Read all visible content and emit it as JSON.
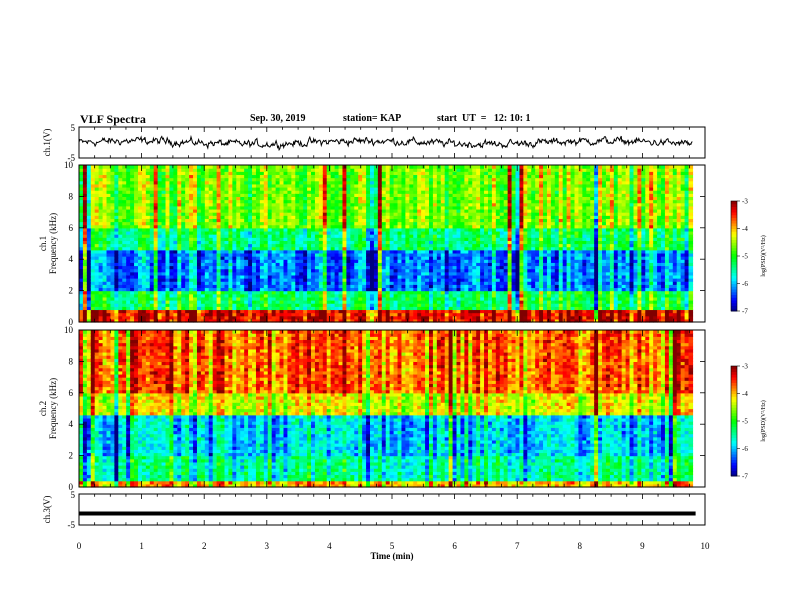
{
  "header": {
    "title": "VLF Spectra",
    "date": "Sep. 30, 2019",
    "station": "station= KAP",
    "start": "start  UT  =   12: 10: 1"
  },
  "chart_data": [
    {
      "type": "line",
      "ylabel": "ch.1(V)",
      "ylim": [
        -5,
        5
      ],
      "y_ticks": [
        "5",
        "-5"
      ],
      "x_range": [
        0,
        10
      ],
      "note": "noisy waveform centred near 0 V, amplitude about ±2 V"
    },
    {
      "type": "heatmap",
      "ylabel_line1": "ch.1",
      "ylabel_line2": "Frequency (kHz)",
      "y_ticks": [
        "0",
        "2",
        "4",
        "6",
        "8",
        "10"
      ],
      "ylim": [
        0,
        10
      ],
      "x_range_min": [
        0,
        9.8
      ],
      "colorbar": {
        "label": "log(PSD)(V²/Hz)",
        "range": [
          -7,
          -3
        ],
        "ticks": [
          "-3",
          "-4",
          "-5",
          "-6",
          "-7"
        ]
      },
      "description_levels": {
        "0-0.8 kHz": -3.3,
        "0.8-2 kHz": -5.2,
        "2-4.5 kHz": -6.2,
        "4.5-6 kHz": -5.3,
        "6-10 kHz": -4.6
      }
    },
    {
      "type": "heatmap",
      "ylabel_line1": "ch.2",
      "ylabel_line2": "Frequency (kHz)",
      "y_ticks": [
        "0",
        "2",
        "4",
        "6",
        "8",
        "10"
      ],
      "ylim": [
        0,
        10
      ],
      "x_range_min": [
        0,
        9.8
      ],
      "colorbar": {
        "label": "log(PSD)(V²/Hz)",
        "range": [
          -7,
          -3
        ],
        "ticks": [
          "-3",
          "-4",
          "-5",
          "-6",
          "-7"
        ]
      },
      "description_levels": {
        "0-0.3 kHz": -4.0,
        "0.3-2 kHz": -5.5,
        "2-4.5 kHz": -5.9,
        "4.5-6 kHz": -4.3,
        "6-10 kHz": -3.7
      }
    },
    {
      "type": "line",
      "ylabel": "ch.3(V)",
      "ylim": [
        -5,
        5
      ],
      "y_ticks": [
        "5",
        "-5"
      ],
      "x_range": [
        0,
        10
      ],
      "values_constant": -1.3
    }
  ],
  "xaxis": {
    "label": "Time (min)",
    "ticks": [
      "0",
      "1",
      "2",
      "3",
      "4",
      "5",
      "6",
      "7",
      "8",
      "9",
      "10"
    ],
    "range": [
      0,
      10
    ]
  },
  "colors": {
    "colormap": [
      "#000080",
      "#0000ff",
      "#0080ff",
      "#00ffff",
      "#00ff80",
      "#00ff00",
      "#80ff00",
      "#ffff00",
      "#ff8000",
      "#ff0000",
      "#800000"
    ],
    "line": "#000000"
  }
}
